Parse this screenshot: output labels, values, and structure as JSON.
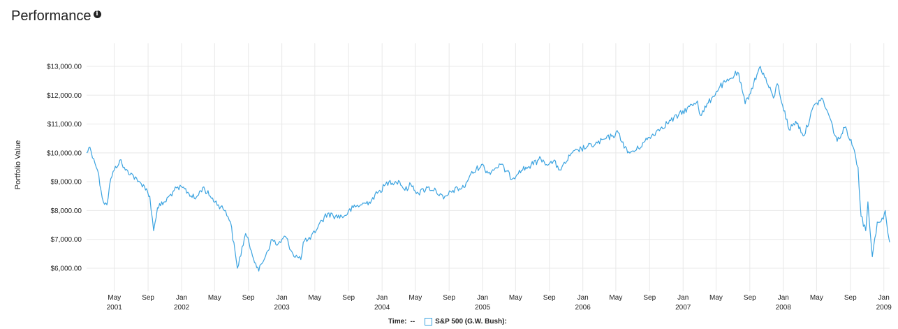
{
  "header": {
    "title": "Performance",
    "info_icon": "info-icon"
  },
  "footer": {
    "time_label": "Time:",
    "time_value": "--",
    "legend_label": "S&P 500 (G.W. Bush):"
  },
  "chart_data": {
    "type": "line",
    "ylabel": "Portfolio Value",
    "ylim": [
      5200,
      13800
    ],
    "xlim": [
      "2001-01-20",
      "2009-01-22"
    ],
    "y_ticks": [
      {
        "value": 6000,
        "label": "$6,000.00"
      },
      {
        "value": 7000,
        "label": "$7,000.00"
      },
      {
        "value": 8000,
        "label": "$8,000.00"
      },
      {
        "value": 9000,
        "label": "$9,000.00"
      },
      {
        "value": 10000,
        "label": "$10,000.00"
      },
      {
        "value": 11000,
        "label": "$11,000.00"
      },
      {
        "value": 12000,
        "label": "$12,000.00"
      },
      {
        "value": 13000,
        "label": "$13,000.00"
      }
    ],
    "x_ticks": [
      {
        "date": "2001-05-01",
        "label": "May",
        "year": "2001"
      },
      {
        "date": "2001-09-01",
        "label": "Sep",
        "year": ""
      },
      {
        "date": "2002-01-01",
        "label": "Jan",
        "year": "2002"
      },
      {
        "date": "2002-05-01",
        "label": "May",
        "year": ""
      },
      {
        "date": "2002-09-01",
        "label": "Sep",
        "year": ""
      },
      {
        "date": "2003-01-01",
        "label": "Jan",
        "year": "2003"
      },
      {
        "date": "2003-05-01",
        "label": "May",
        "year": ""
      },
      {
        "date": "2003-09-01",
        "label": "Sep",
        "year": ""
      },
      {
        "date": "2004-01-01",
        "label": "Jan",
        "year": "2004"
      },
      {
        "date": "2004-05-01",
        "label": "May",
        "year": ""
      },
      {
        "date": "2004-09-01",
        "label": "Sep",
        "year": ""
      },
      {
        "date": "2005-01-01",
        "label": "Jan",
        "year": "2005"
      },
      {
        "date": "2005-05-01",
        "label": "May",
        "year": ""
      },
      {
        "date": "2005-09-01",
        "label": "Sep",
        "year": ""
      },
      {
        "date": "2006-01-01",
        "label": "Jan",
        "year": "2006"
      },
      {
        "date": "2006-05-01",
        "label": "May",
        "year": ""
      },
      {
        "date": "2006-09-01",
        "label": "Sep",
        "year": ""
      },
      {
        "date": "2007-01-01",
        "label": "Jan",
        "year": "2007"
      },
      {
        "date": "2007-05-01",
        "label": "May",
        "year": ""
      },
      {
        "date": "2007-09-01",
        "label": "Sep",
        "year": ""
      },
      {
        "date": "2008-01-01",
        "label": "Jan",
        "year": "2008"
      },
      {
        "date": "2008-05-01",
        "label": "May",
        "year": ""
      },
      {
        "date": "2008-09-01",
        "label": "Sep",
        "year": ""
      },
      {
        "date": "2009-01-01",
        "label": "Jan",
        "year": "2009"
      }
    ],
    "series": [
      {
        "name": "S&P 500 (G.W. Bush)",
        "color": "#3ba3e0",
        "points": [
          [
            "2001-01-20",
            10000
          ],
          [
            "2001-02-01",
            10200
          ],
          [
            "2001-02-15",
            9800
          ],
          [
            "2001-03-01",
            9400
          ],
          [
            "2001-03-22",
            8300
          ],
          [
            "2001-04-04",
            8200
          ],
          [
            "2001-04-18",
            9100
          ],
          [
            "2001-05-01",
            9400
          ],
          [
            "2001-05-21",
            9750
          ],
          [
            "2001-06-10",
            9400
          ],
          [
            "2001-07-01",
            9300
          ],
          [
            "2001-07-25",
            9000
          ],
          [
            "2001-08-15",
            8900
          ],
          [
            "2001-09-07",
            8500
          ],
          [
            "2001-09-21",
            7300
          ],
          [
            "2001-10-05",
            8100
          ],
          [
            "2001-11-01",
            8300
          ],
          [
            "2001-12-05",
            8700
          ],
          [
            "2002-01-04",
            8800
          ],
          [
            "2002-02-20",
            8400
          ],
          [
            "2002-03-19",
            8800
          ],
          [
            "2002-04-15",
            8500
          ],
          [
            "2002-05-15",
            8200
          ],
          [
            "2002-06-10",
            8000
          ],
          [
            "2002-06-28",
            7600
          ],
          [
            "2002-07-23",
            6000
          ],
          [
            "2002-08-22",
            7200
          ],
          [
            "2002-09-12",
            6600
          ],
          [
            "2002-10-09",
            5900
          ],
          [
            "2002-11-27",
            7000
          ],
          [
            "2002-12-15",
            6800
          ],
          [
            "2003-01-14",
            7100
          ],
          [
            "2003-02-10",
            6500
          ],
          [
            "2003-03-11",
            6300
          ],
          [
            "2003-03-20",
            6900
          ],
          [
            "2003-04-15",
            7000
          ],
          [
            "2003-05-15",
            7500
          ],
          [
            "2003-06-17",
            7900
          ],
          [
            "2003-07-15",
            7800
          ],
          [
            "2003-08-15",
            7800
          ],
          [
            "2003-09-18",
            8100
          ],
          [
            "2003-10-15",
            8200
          ],
          [
            "2003-11-15",
            8300
          ],
          [
            "2003-12-15",
            8600
          ],
          [
            "2004-01-26",
            9000
          ],
          [
            "2004-03-05",
            9000
          ],
          [
            "2004-03-24",
            8700
          ],
          [
            "2004-04-15",
            8900
          ],
          [
            "2004-05-12",
            8600
          ],
          [
            "2004-06-15",
            8800
          ],
          [
            "2004-07-15",
            8700
          ],
          [
            "2004-08-12",
            8400
          ],
          [
            "2004-09-15",
            8700
          ],
          [
            "2004-10-25",
            8800
          ],
          [
            "2004-11-15",
            9200
          ],
          [
            "2004-12-28",
            9600
          ],
          [
            "2005-01-21",
            9300
          ],
          [
            "2005-03-07",
            9600
          ],
          [
            "2005-04-20",
            9100
          ],
          [
            "2005-05-15",
            9400
          ],
          [
            "2005-06-15",
            9500
          ],
          [
            "2005-08-01",
            9800
          ],
          [
            "2005-08-30",
            9600
          ],
          [
            "2005-09-15",
            9700
          ],
          [
            "2005-10-13",
            9400
          ],
          [
            "2005-11-15",
            9900
          ],
          [
            "2005-12-15",
            10100
          ],
          [
            "2006-01-15",
            10200
          ],
          [
            "2006-02-15",
            10300
          ],
          [
            "2006-04-20",
            10600
          ],
          [
            "2006-05-10",
            10700
          ],
          [
            "2006-06-13",
            10000
          ],
          [
            "2006-07-15",
            10100
          ],
          [
            "2006-08-15",
            10400
          ],
          [
            "2006-10-15",
            10900
          ],
          [
            "2006-12-15",
            11300
          ],
          [
            "2007-02-22",
            11800
          ],
          [
            "2007-03-05",
            11300
          ],
          [
            "2007-04-15",
            11900
          ],
          [
            "2007-05-15",
            12300
          ],
          [
            "2007-06-15",
            12500
          ],
          [
            "2007-07-19",
            12800
          ],
          [
            "2007-08-15",
            11700
          ],
          [
            "2007-09-15",
            12400
          ],
          [
            "2007-10-09",
            13000
          ],
          [
            "2007-11-26",
            11900
          ],
          [
            "2007-12-10",
            12400
          ],
          [
            "2008-01-22",
            10800
          ],
          [
            "2008-02-15",
            11100
          ],
          [
            "2008-03-17",
            10600
          ],
          [
            "2008-04-15",
            11500
          ],
          [
            "2008-05-19",
            11900
          ],
          [
            "2008-06-15",
            11300
          ],
          [
            "2008-07-15",
            10400
          ],
          [
            "2008-08-15",
            10900
          ],
          [
            "2008-09-15",
            10100
          ],
          [
            "2008-09-29",
            9500
          ],
          [
            "2008-10-10",
            7800
          ],
          [
            "2008-10-27",
            7300
          ],
          [
            "2008-11-04",
            8300
          ],
          [
            "2008-11-20",
            6400
          ],
          [
            "2008-12-08",
            7600
          ],
          [
            "2008-12-30",
            7700
          ],
          [
            "2009-01-06",
            8000
          ],
          [
            "2009-01-20",
            7000
          ],
          [
            "2009-01-22",
            6900
          ]
        ]
      }
    ]
  }
}
